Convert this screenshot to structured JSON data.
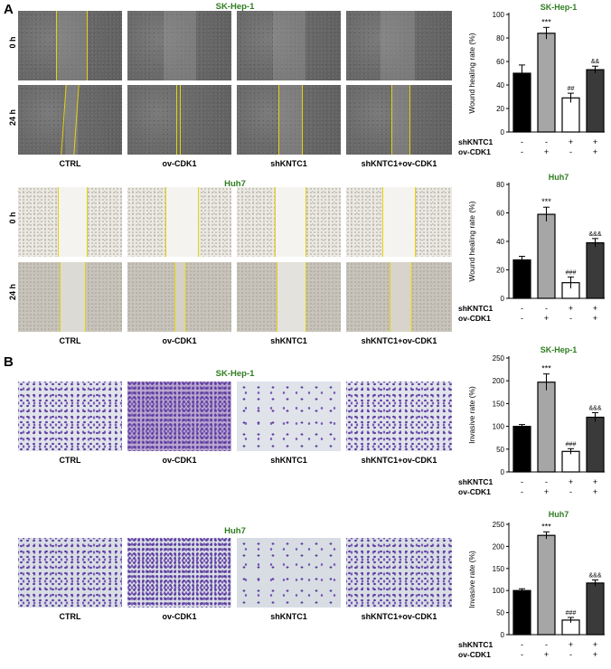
{
  "panels": {
    "A": {
      "letter": "A",
      "sk": {
        "title": "SK-Hep-1",
        "row_labels": [
          "0 h",
          "24 h"
        ]
      },
      "huh": {
        "title": "Huh7",
        "row_labels": [
          "0 h",
          "24 h"
        ]
      },
      "columns": [
        "CTRL",
        "ov-CDK1",
        "shKNTC1",
        "shKNTC1+ov-CDK1"
      ]
    },
    "B": {
      "letter": "B",
      "sk": {
        "title": "SK-Hep-1"
      },
      "huh": {
        "title": "Huh7"
      },
      "columns": [
        "CTRL",
        "ov-CDK1",
        "shKNTC1",
        "shKNTC1+ov-CDK1"
      ]
    }
  },
  "chart_data": [
    {
      "type": "bar",
      "title": "SK-Hep-1",
      "ylabel": "Wound healing rate (%)",
      "ylim": [
        0,
        100
      ],
      "yticks": [
        "0",
        "20",
        "40",
        "60",
        "80",
        "100"
      ],
      "values": [
        50,
        84,
        29,
        53
      ],
      "errors": [
        7,
        5,
        4,
        3
      ],
      "annotations": [
        "",
        "***",
        "##",
        "&&"
      ],
      "bar_colors": [
        "#000000",
        "#a6a6a6",
        "#ffffff",
        "#3a3a3a"
      ],
      "factors": [
        {
          "label": "shKNTC1",
          "signs": [
            "-",
            "-",
            "+",
            "+"
          ]
        },
        {
          "label": "ov-CDK1",
          "signs": [
            "-",
            "+",
            "-",
            "+"
          ]
        }
      ]
    },
    {
      "type": "bar",
      "title": "Huh7",
      "ylabel": "Wound healing rate (%)",
      "ylim": [
        0,
        80
      ],
      "yticks": [
        "0",
        "20",
        "40",
        "60",
        "80"
      ],
      "values": [
        27,
        59,
        11,
        39
      ],
      "errors": [
        2.5,
        5,
        4,
        3
      ],
      "annotations": [
        "",
        "***",
        "###",
        "&&&"
      ],
      "bar_colors": [
        "#000000",
        "#a6a6a6",
        "#ffffff",
        "#3a3a3a"
      ],
      "factors": [
        {
          "label": "shKNTC1",
          "signs": [
            "-",
            "-",
            "+",
            "+"
          ]
        },
        {
          "label": "ov-CDK1",
          "signs": [
            "-",
            "+",
            "-",
            "+"
          ]
        }
      ]
    },
    {
      "type": "bar",
      "title": "SK-Hep-1",
      "ylabel": "Invasive rate (%)",
      "ylim": [
        0,
        250
      ],
      "yticks": [
        "0",
        "50",
        "100",
        "150",
        "200",
        "250"
      ],
      "values": [
        100,
        197,
        45,
        120
      ],
      "errors": [
        4,
        18,
        6,
        10
      ],
      "annotations": [
        "",
        "***",
        "###",
        "&&&"
      ],
      "bar_colors": [
        "#000000",
        "#a6a6a6",
        "#ffffff",
        "#3a3a3a"
      ],
      "factors": [
        {
          "label": "shKNTC1",
          "signs": [
            "-",
            "-",
            "+",
            "+"
          ]
        },
        {
          "label": "ov-CDK1",
          "signs": [
            "-",
            "+",
            "-",
            "+"
          ]
        }
      ]
    },
    {
      "type": "bar",
      "title": "Huh7",
      "ylabel": "Invasive rate (%)",
      "ylim": [
        0,
        250
      ],
      "yticks": [
        "0",
        "50",
        "100",
        "150",
        "200",
        "250"
      ],
      "values": [
        100,
        225,
        33,
        117
      ],
      "errors": [
        4,
        8,
        6,
        7
      ],
      "annotations": [
        "",
        "***",
        "###",
        "&&&"
      ],
      "bar_colors": [
        "#000000",
        "#a6a6a6",
        "#ffffff",
        "#3a3a3a"
      ],
      "factors": [
        {
          "label": "shKNTC1",
          "signs": [
            "-",
            "-",
            "+",
            "+"
          ]
        },
        {
          "label": "ov-CDK1",
          "signs": [
            "-",
            "+",
            "-",
            "+"
          ]
        }
      ]
    }
  ]
}
